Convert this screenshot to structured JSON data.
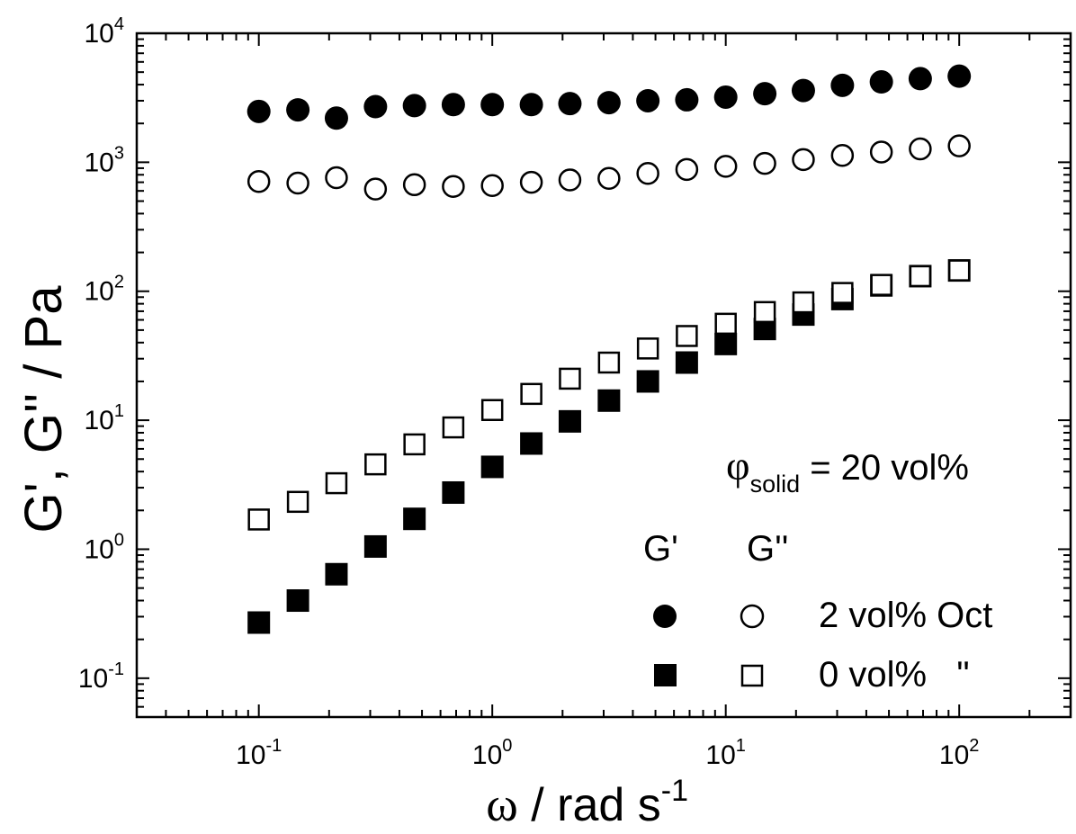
{
  "chart_data": {
    "type": "scatter",
    "x_scale": "log",
    "y_scale": "log",
    "xlim": [
      0.03,
      300
    ],
    "ylim": [
      0.05,
      10000
    ],
    "xlabel_symbol": "ω",
    "xlabel_unit": " / rad s",
    "xlabel_exp": "-1",
    "ylabel": "G', G'' / Pa",
    "x_ticks": [
      {
        "base": "10",
        "exp": "-1",
        "value": 0.1
      },
      {
        "base": "10",
        "exp": "0",
        "value": 1
      },
      {
        "base": "10",
        "exp": "1",
        "value": 10
      },
      {
        "base": "10",
        "exp": "2",
        "value": 100
      }
    ],
    "y_ticks": [
      {
        "base": "10",
        "exp": "-1",
        "value": 0.1
      },
      {
        "base": "10",
        "exp": "0",
        "value": 1
      },
      {
        "base": "10",
        "exp": "1",
        "value": 10
      },
      {
        "base": "10",
        "exp": "2",
        "value": 100
      },
      {
        "base": "10",
        "exp": "3",
        "value": 1000
      },
      {
        "base": "10",
        "exp": "4",
        "value": 10000
      }
    ],
    "annotation": {
      "phi": "φ",
      "sub": "solid",
      "rest": " = 20 vol%"
    },
    "legend": {
      "header_gp": "G'",
      "header_gpp": "G''",
      "rows": [
        {
          "label": "2 vol% Oct",
          "marker": "circle"
        },
        {
          "label": "0 vol%   \"",
          "marker": "square"
        }
      ]
    },
    "x": [
      0.1,
      0.147,
      0.215,
      0.316,
      0.464,
      0.681,
      1.0,
      1.47,
      2.15,
      3.16,
      4.64,
      6.81,
      10.0,
      14.7,
      21.5,
      31.6,
      46.4,
      68.1,
      100.0
    ],
    "series": [
      {
        "marker": "circle",
        "filled": true,
        "values": [
          2480,
          2550,
          2200,
          2700,
          2750,
          2800,
          2800,
          2800,
          2850,
          2900,
          3000,
          3050,
          3200,
          3400,
          3600,
          3950,
          4200,
          4450,
          4650
        ]
      },
      {
        "marker": "circle",
        "filled": false,
        "values": [
          710,
          690,
          760,
          620,
          670,
          650,
          660,
          700,
          730,
          750,
          820,
          880,
          930,
          980,
          1050,
          1130,
          1200,
          1270,
          1340
        ]
      },
      {
        "marker": "square",
        "filled": true,
        "values": [
          0.27,
          0.4,
          0.64,
          1.05,
          1.72,
          2.75,
          4.35,
          6.6,
          9.8,
          14.2,
          20.0,
          28.0,
          39.0,
          51.0,
          66.0,
          87.0,
          111.0,
          131.0,
          145.0
        ]
      },
      {
        "marker": "square",
        "filled": false,
        "values": [
          1.7,
          2.33,
          3.25,
          4.55,
          6.5,
          8.8,
          12.0,
          16.0,
          21.0,
          28.0,
          36.0,
          45.0,
          56.0,
          69.0,
          82.0,
          97.0,
          112.0,
          131.0,
          145.0
        ]
      }
    ]
  }
}
